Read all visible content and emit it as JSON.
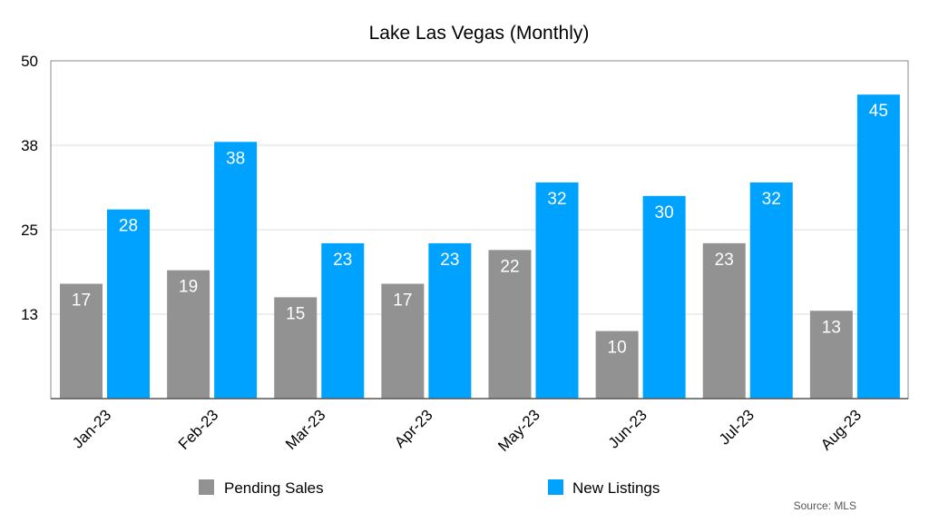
{
  "chart_data": {
    "type": "bar",
    "title": "Lake Las Vegas (Monthly)",
    "xlabel": "",
    "ylabel": "",
    "ylim": [
      0,
      50
    ],
    "yticks": [
      13,
      25,
      38,
      50
    ],
    "ytick_values": [
      12.5,
      25,
      37.5,
      50
    ],
    "grid": true,
    "categories": [
      "Jan-23",
      "Feb-23",
      "Mar-23",
      "Apr-23",
      "May-23",
      "Jun-23",
      "Jul-23",
      "Aug-23"
    ],
    "series": [
      {
        "name": "Pending Sales",
        "color": "#929292",
        "values": [
          17,
          19,
          15,
          17,
          22,
          10,
          23,
          13
        ]
      },
      {
        "name": "New Listings",
        "color": "#00A2FF",
        "values": [
          28,
          38,
          23,
          23,
          32,
          30,
          32,
          45
        ]
      }
    ],
    "legend_position": "bottom",
    "source": "Source: MLS"
  }
}
